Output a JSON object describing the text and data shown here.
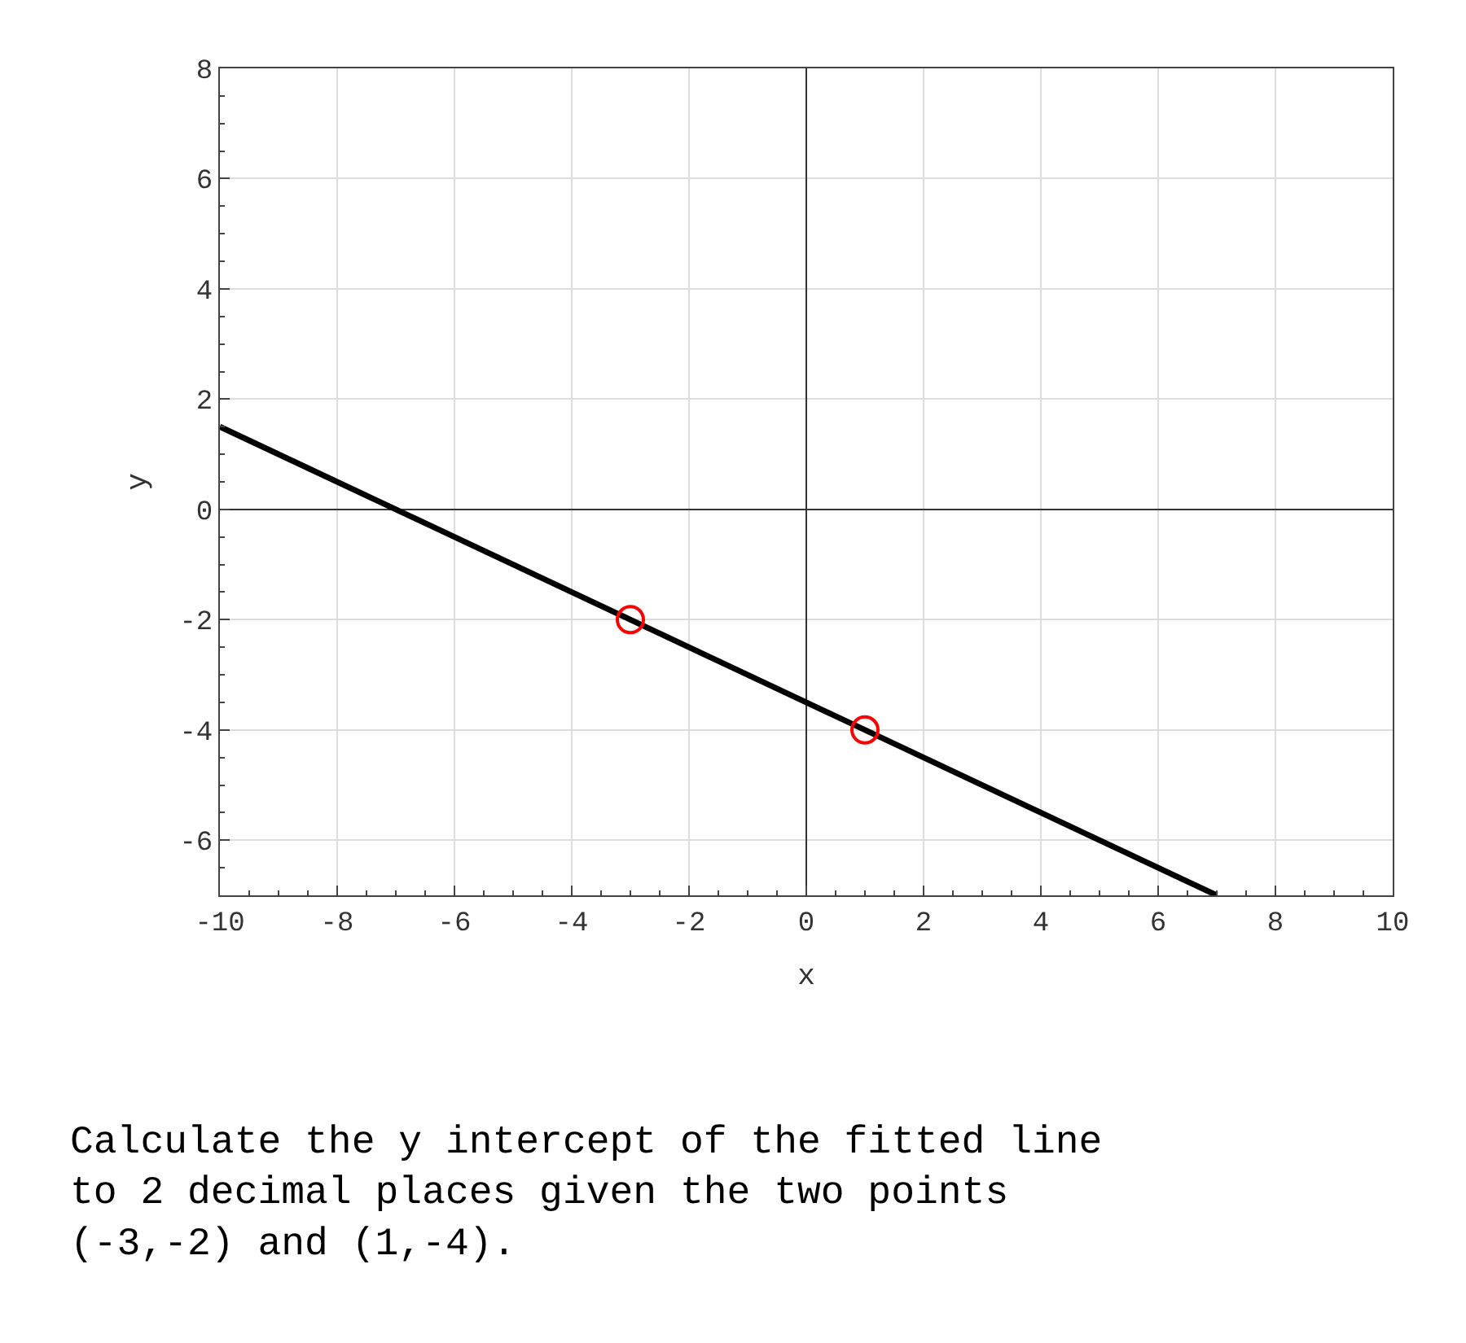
{
  "chart_data": {
    "type": "line",
    "xlabel": "x",
    "ylabel": "y",
    "series": [
      {
        "type": "line",
        "color": "#000000",
        "x": [
          -10,
          7
        ],
        "values": [
          1.5,
          -7
        ],
        "marker": "none",
        "line_style": "solid"
      },
      {
        "type": "scatter",
        "color": "#ff0000",
        "x": [
          -3,
          1
        ],
        "values": [
          -2,
          -4
        ],
        "marker": "circle"
      }
    ],
    "xlim": [
      -10,
      10
    ],
    "ylim": [
      -7,
      8
    ],
    "xticks": [
      -10,
      -8,
      -6,
      -4,
      -2,
      0,
      2,
      4,
      6,
      8,
      10
    ],
    "yticks": [
      -6,
      -4,
      -2,
      0,
      2,
      4,
      6,
      8
    ],
    "grid": true,
    "annotations": [
      "Calculate the y intercept of the fitted line\nto 2 decimal places given the two points\n(-3,-2) and (1,-4)."
    ]
  }
}
